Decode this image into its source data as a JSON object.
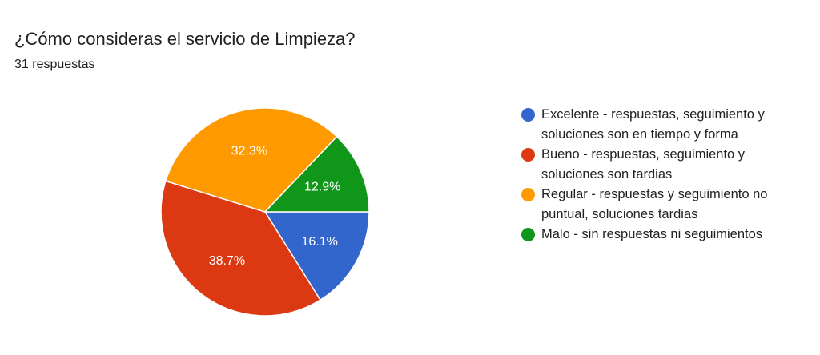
{
  "header": {
    "question": "¿Cómo consideras el servicio de Limpieza?",
    "responses": "31 respuestas"
  },
  "chart_data": {
    "type": "pie",
    "slices": [
      {
        "label": "Excelente - respuestas, seguimiento y soluciones son en tiempo y forma",
        "value": 16.1,
        "display": "16.1%",
        "color": "#3366cc"
      },
      {
        "label": "Bueno - respuestas, seguimiento y soluciones son tardias",
        "value": 38.7,
        "display": "38.7%",
        "color": "#dc3912"
      },
      {
        "label": "Regular - respuestas y seguimiento no puntual, soluciones tardias",
        "value": 32.3,
        "display": "32.3%",
        "color": "#ff9900"
      },
      {
        "label": "Malo - sin respuestas ni seguimientos",
        "value": 12.9,
        "display": "12.9%",
        "color": "#109618"
      }
    ],
    "legend_position": "right"
  },
  "legend": {
    "items": [
      {
        "text": "Excelente - respuestas, seguimiento y soluciones son en tiempo y forma",
        "color": "#3366cc"
      },
      {
        "text": "Bueno - respuestas, seguimiento y soluciones son tardias",
        "color": "#dc3912"
      },
      {
        "text": "Regular - respuestas y seguimiento no puntual, soluciones tardias",
        "color": "#ff9900"
      },
      {
        "text": "Malo - sin respuestas ni seguimientos",
        "color": "#109618"
      }
    ]
  }
}
